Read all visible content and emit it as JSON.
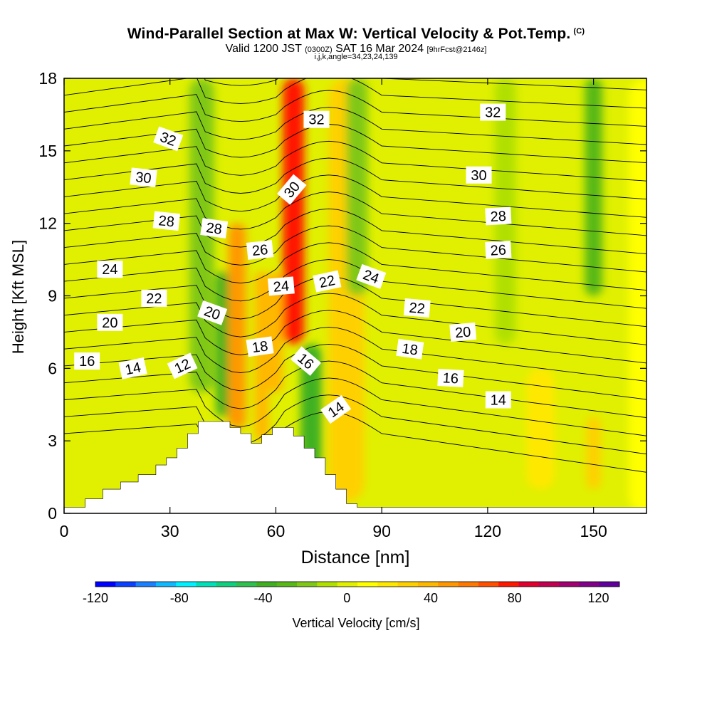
{
  "title": {
    "main": "Wind-Parallel Section at Max W: Vertical Velocity & Pot.Temp.",
    "copyright": "(C)",
    "valid_prefix": "Valid 1200 JST",
    "valid_zulu": "(0300Z)",
    "valid_date": "SAT 16 Mar 2024",
    "forecast": "[9hrFcst@2146z]",
    "indices": "i,j,k,angle=34,23,24,139"
  },
  "colors": {
    "terrain": "#ffffff",
    "contour": "#000000",
    "frame": "#000000"
  },
  "chart_data": {
    "type": "heatmap",
    "xlabel": "Distance [nm]",
    "ylabel": "Height [Kft MSL]",
    "xlim": [
      0,
      165
    ],
    "ylim": [
      0,
      18
    ],
    "x_ticks": [
      0,
      30,
      60,
      90,
      120,
      150
    ],
    "y_ticks": [
      0,
      3,
      6,
      9,
      12,
      15,
      18
    ],
    "grid": false,
    "colorbar": {
      "label": "Vertical Velocity [cm/s]",
      "min": -120,
      "max": 130,
      "ticks": [
        -120,
        -80,
        -40,
        0,
        40,
        80,
        120
      ],
      "colors": [
        "#0000ff",
        "#0a40ff",
        "#1a80ff",
        "#10b8ff",
        "#00f0ff",
        "#00e0b8",
        "#10d080",
        "#30c050",
        "#40b020",
        "#58b818",
        "#80c818",
        "#b0e000",
        "#e0f000",
        "#ffff00",
        "#ffe800",
        "#ffd000",
        "#ffb800",
        "#ff9800",
        "#ff7800",
        "#ff5000",
        "#ff1800",
        "#e00030",
        "#c00050",
        "#a00070",
        "#800088",
        "#60009a"
      ]
    },
    "terrain_profile": {
      "distance_nm": [
        0,
        6,
        6,
        11,
        11,
        16,
        16,
        21,
        21,
        26,
        26,
        29,
        29,
        32,
        32,
        35,
        35,
        38,
        38,
        41,
        41,
        47,
        47,
        50,
        50,
        53,
        53,
        56,
        56,
        59,
        59,
        65,
        65,
        68,
        68,
        71,
        71,
        74,
        74,
        77,
        77,
        80,
        80,
        83,
        83,
        165
      ],
      "height_kft": [
        0.25,
        0.25,
        0.6,
        0.6,
        1.0,
        1.0,
        1.3,
        1.3,
        1.6,
        1.6,
        2.0,
        2.0,
        2.3,
        2.3,
        2.7,
        2.7,
        3.3,
        3.3,
        3.8,
        3.8,
        3.8,
        3.8,
        3.55,
        3.55,
        3.3,
        3.3,
        2.9,
        2.9,
        3.25,
        3.25,
        3.55,
        3.55,
        3.2,
        3.2,
        2.7,
        2.7,
        2.3,
        2.3,
        1.6,
        1.6,
        1.0,
        1.0,
        0.4,
        0.4,
        0.25,
        0.25
      ]
    },
    "vertical_velocity_features": [
      {
        "x_nm": 39,
        "w_cm_s": -18,
        "width_nm": 7,
        "y_kft": [
          5,
          18
        ]
      },
      {
        "x_nm": 45,
        "w_cm_s": -35,
        "width_nm": 4,
        "y_kft": [
          4,
          10
        ]
      },
      {
        "x_nm": 49,
        "w_cm_s": 45,
        "width_nm": 5,
        "y_kft": [
          3.5,
          12
        ]
      },
      {
        "x_nm": 56,
        "w_cm_s": 40,
        "width_nm": 4,
        "y_kft": [
          3,
          10
        ]
      },
      {
        "x_nm": 60,
        "w_cm_s": 35,
        "width_nm": 4,
        "y_kft": [
          5,
          10
        ]
      },
      {
        "x_nm": 65,
        "w_cm_s": 80,
        "width_nm": 6,
        "y_kft": [
          7,
          18
        ]
      },
      {
        "x_nm": 70,
        "w_cm_s": -35,
        "width_nm": 6,
        "y_kft": [
          1.5,
          7
        ]
      },
      {
        "x_nm": 80,
        "w_cm_s": 25,
        "width_nm": 10,
        "y_kft": [
          0.5,
          18
        ]
      },
      {
        "x_nm": 83,
        "w_cm_s": -20,
        "width_nm": 6,
        "y_kft": [
          9,
          18
        ]
      },
      {
        "x_nm": 125,
        "w_cm_s": -10,
        "width_nm": 6,
        "y_kft": [
          7,
          18
        ]
      },
      {
        "x_nm": 135,
        "w_cm_s": 20,
        "width_nm": 8,
        "y_kft": [
          1,
          6
        ]
      },
      {
        "x_nm": 150,
        "w_cm_s": -25,
        "width_nm": 5,
        "y_kft": [
          9,
          18
        ]
      },
      {
        "x_nm": 150,
        "w_cm_s": 30,
        "width_nm": 4,
        "y_kft": [
          1,
          4
        ]
      },
      {
        "x_nm": 165,
        "w_cm_s": 5,
        "width_nm": 10,
        "y_kft": [
          0,
          18
        ]
      }
    ],
    "contour_labels": [
      {
        "text": "32",
        "x_nm": 29.5,
        "y_kft": 15.5,
        "angle": 20
      },
      {
        "text": "32",
        "x_nm": 71.5,
        "y_kft": 16.3,
        "angle": 0
      },
      {
        "text": "32",
        "x_nm": 121.5,
        "y_kft": 16.6,
        "angle": 0
      },
      {
        "text": "30",
        "x_nm": 22.5,
        "y_kft": 13.9,
        "angle": 6
      },
      {
        "text": "30",
        "x_nm": 64.5,
        "y_kft": 13.4,
        "angle": -50
      },
      {
        "text": "30",
        "x_nm": 117.5,
        "y_kft": 14.0,
        "angle": 0
      },
      {
        "text": "28",
        "x_nm": 29,
        "y_kft": 12.1,
        "angle": 6
      },
      {
        "text": "28",
        "x_nm": 42.5,
        "y_kft": 11.8,
        "angle": 8
      },
      {
        "text": "28",
        "x_nm": 123,
        "y_kft": 12.3,
        "angle": -3
      },
      {
        "text": "26",
        "x_nm": 55.5,
        "y_kft": 10.9,
        "angle": -6
      },
      {
        "text": "26",
        "x_nm": 123,
        "y_kft": 10.9,
        "angle": -3
      },
      {
        "text": "24",
        "x_nm": 13,
        "y_kft": 10.1,
        "angle": 0
      },
      {
        "text": "24",
        "x_nm": 61.5,
        "y_kft": 9.4,
        "angle": -5
      },
      {
        "text": "24",
        "x_nm": 87,
        "y_kft": 9.8,
        "angle": 20
      },
      {
        "text": "22",
        "x_nm": 25.5,
        "y_kft": 8.9,
        "angle": 0
      },
      {
        "text": "22",
        "x_nm": 74.5,
        "y_kft": 9.6,
        "angle": -12
      },
      {
        "text": "22",
        "x_nm": 100,
        "y_kft": 8.5,
        "angle": 5
      },
      {
        "text": "20",
        "x_nm": 13,
        "y_kft": 7.9,
        "angle": 0
      },
      {
        "text": "20",
        "x_nm": 42,
        "y_kft": 8.3,
        "angle": 20
      },
      {
        "text": "20",
        "x_nm": 113,
        "y_kft": 7.5,
        "angle": -5
      },
      {
        "text": "18",
        "x_nm": 55.5,
        "y_kft": 6.9,
        "angle": -8
      },
      {
        "text": "18",
        "x_nm": 98,
        "y_kft": 6.8,
        "angle": 8
      },
      {
        "text": "16",
        "x_nm": 6.5,
        "y_kft": 6.3,
        "angle": 0
      },
      {
        "text": "16",
        "x_nm": 68.5,
        "y_kft": 6.3,
        "angle": 40
      },
      {
        "text": "16",
        "x_nm": 109.5,
        "y_kft": 5.6,
        "angle": 3
      },
      {
        "text": "14",
        "x_nm": 19.5,
        "y_kft": 6.0,
        "angle": -12
      },
      {
        "text": "14",
        "x_nm": 77,
        "y_kft": 4.3,
        "angle": -35
      },
      {
        "text": "14",
        "x_nm": 123,
        "y_kft": 4.7,
        "angle": 0
      },
      {
        "text": "12",
        "x_nm": 33.5,
        "y_kft": 6.1,
        "angle": -25
      }
    ]
  }
}
